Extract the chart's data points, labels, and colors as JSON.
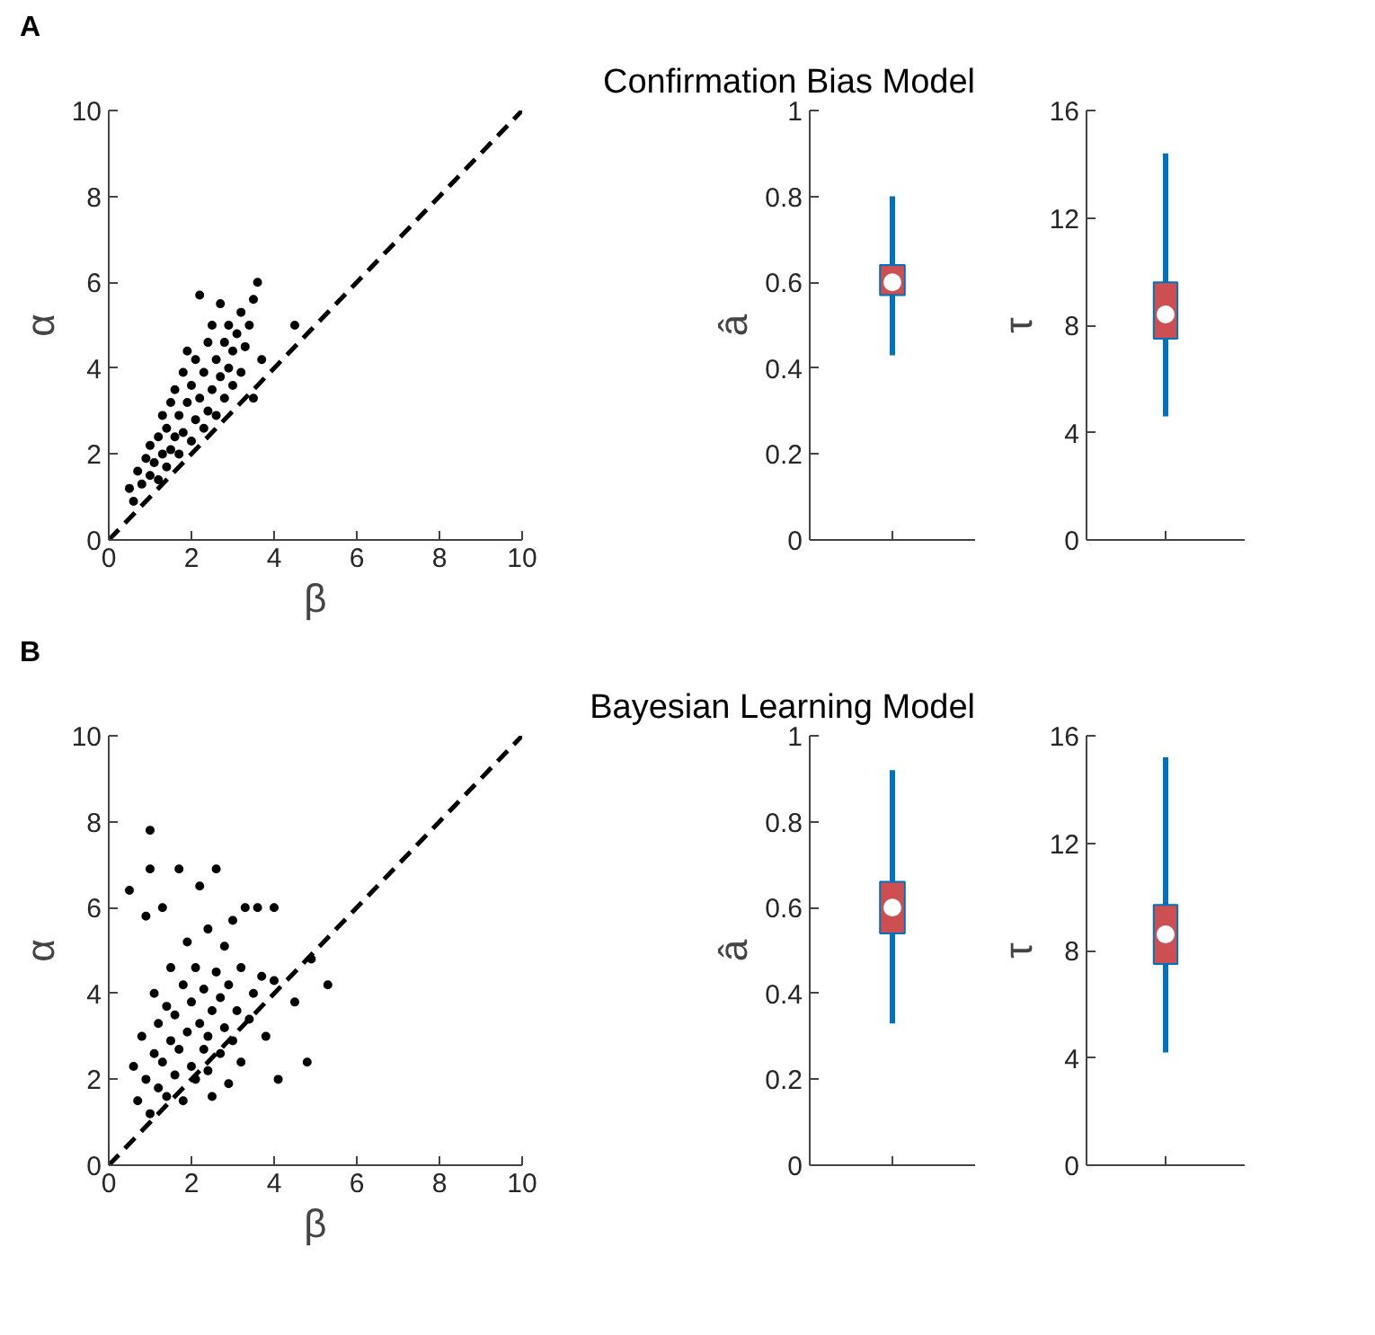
{
  "chart_data": [
    {
      "type": "scatter",
      "annotations": [
        "A"
      ],
      "xlabel": "β",
      "ylabel": "α",
      "xlim": [
        0,
        10
      ],
      "ylim": [
        0,
        10
      ],
      "xticks": [
        0,
        2,
        4,
        6,
        8,
        10
      ],
      "yticks": [
        0,
        2,
        4,
        6,
        8,
        10
      ],
      "grid": false,
      "series": [
        {
          "type": "scatter",
          "marker": "circle",
          "color": "#000000",
          "x": [
            0.5,
            0.6,
            0.7,
            0.8,
            0.9,
            1.0,
            1.0,
            1.1,
            1.2,
            1.2,
            1.3,
            1.3,
            1.4,
            1.4,
            1.5,
            1.5,
            1.6,
            1.6,
            1.7,
            1.7,
            1.8,
            1.8,
            1.9,
            1.9,
            2.0,
            2.0,
            2.1,
            2.1,
            2.2,
            2.2,
            2.3,
            2.3,
            2.4,
            2.4,
            2.5,
            2.5,
            2.6,
            2.6,
            2.7,
            2.7,
            2.8,
            2.8,
            2.9,
            2.9,
            3.0,
            3.0,
            3.1,
            3.2,
            3.2,
            3.3,
            3.4,
            3.5,
            3.6,
            3.5,
            3.7,
            4.5
          ],
          "values": [
            1.2,
            0.9,
            1.6,
            1.3,
            1.9,
            1.5,
            2.2,
            1.8,
            2.4,
            1.4,
            2.0,
            2.9,
            1.7,
            2.6,
            3.2,
            2.1,
            2.4,
            3.5,
            2.0,
            2.9,
            3.9,
            2.5,
            3.2,
            4.4,
            2.3,
            3.6,
            2.8,
            4.2,
            3.3,
            5.7,
            2.6,
            3.9,
            4.6,
            3.0,
            3.5,
            5.0,
            2.9,
            4.2,
            3.8,
            5.5,
            3.3,
            4.6,
            4.0,
            5.0,
            3.6,
            4.4,
            4.8,
            3.9,
            5.3,
            4.5,
            5.0,
            5.6,
            6.0,
            3.3,
            4.2,
            5.0
          ]
        },
        {
          "type": "line",
          "color": "#000000",
          "line_style": "dashed",
          "x": [
            0,
            10
          ],
          "values": [
            0,
            10
          ]
        }
      ]
    },
    {
      "type": "box",
      "title": "Confirmation Bias Model",
      "ylabel": "â",
      "categories": [
        null
      ],
      "ylim": [
        0,
        1
      ],
      "yticks": [
        0,
        0.2,
        0.4,
        0.6,
        0.8,
        1
      ],
      "tick_labels": "y",
      "grid": false,
      "series": [
        {
          "color": "#0072bd",
          "boxes": [
            {
              "low": 0.43,
              "q1": 0.57,
              "median": 0.6,
              "q3": 0.64,
              "high": 0.8
            }
          ]
        }
      ]
    },
    {
      "type": "box",
      "ylabel": "τ",
      "categories": [
        null
      ],
      "ylim": [
        0,
        16
      ],
      "yticks": [
        0,
        4,
        8,
        12,
        16
      ],
      "tick_labels": "y",
      "grid": false,
      "series": [
        {
          "color": "#0072bd",
          "boxes": [
            {
              "low": 4.6,
              "q1": 7.5,
              "median": 8.4,
              "q3": 9.6,
              "high": 14.4
            }
          ]
        }
      ]
    },
    {
      "type": "scatter",
      "annotations": [
        "B"
      ],
      "xlabel": "β",
      "ylabel": "α",
      "xlim": [
        0,
        10
      ],
      "ylim": [
        0,
        10
      ],
      "xticks": [
        0,
        2,
        4,
        6,
        8,
        10
      ],
      "yticks": [
        0,
        2,
        4,
        6,
        8,
        10
      ],
      "grid": false,
      "series": [
        {
          "type": "scatter",
          "marker": "circle",
          "color": "#000000",
          "x": [
            0.5,
            0.6,
            0.7,
            0.8,
            0.9,
            0.9,
            1.0,
            1.0,
            1.0,
            1.1,
            1.1,
            1.2,
            1.2,
            1.3,
            1.3,
            1.4,
            1.4,
            1.5,
            1.5,
            1.6,
            1.6,
            1.7,
            1.7,
            1.8,
            1.8,
            1.9,
            1.9,
            2.0,
            2.0,
            2.1,
            2.1,
            2.2,
            2.2,
            2.3,
            2.3,
            2.4,
            2.4,
            2.5,
            2.5,
            2.6,
            2.6,
            2.7,
            2.7,
            2.8,
            2.8,
            2.9,
            3.0,
            3.0,
            3.1,
            3.2,
            3.2,
            3.3,
            3.4,
            3.5,
            3.6,
            3.7,
            3.8,
            4.0,
            4.0,
            4.1,
            4.5,
            4.8,
            4.9,
            5.3,
            2.4,
            2.9
          ],
          "values": [
            6.4,
            2.3,
            1.5,
            3.0,
            2.0,
            5.8,
            7.8,
            6.9,
            1.2,
            2.6,
            4.0,
            1.8,
            3.3,
            2.4,
            6.0,
            3.7,
            1.6,
            2.9,
            4.6,
            2.1,
            3.5,
            6.9,
            2.7,
            4.2,
            1.5,
            3.1,
            5.2,
            2.3,
            3.8,
            4.6,
            2.0,
            3.3,
            6.5,
            2.7,
            4.1,
            5.5,
            3.0,
            3.6,
            1.6,
            4.5,
            6.9,
            2.6,
            3.9,
            5.1,
            3.2,
            4.2,
            2.9,
            5.7,
            3.6,
            2.4,
            4.6,
            6.0,
            3.4,
            4.0,
            6.0,
            4.4,
            3.0,
            6.0,
            4.3,
            2.0,
            3.8,
            2.4,
            4.8,
            4.2,
            2.2,
            1.9
          ]
        },
        {
          "type": "line",
          "color": "#000000",
          "line_style": "dashed",
          "x": [
            0,
            10
          ],
          "values": [
            0,
            10
          ]
        }
      ]
    },
    {
      "type": "box",
      "title": "Bayesian Learning Model",
      "ylabel": "â",
      "categories": [
        null
      ],
      "ylim": [
        0,
        1
      ],
      "yticks": [
        0,
        0.2,
        0.4,
        0.6,
        0.8,
        1
      ],
      "tick_labels": "y",
      "grid": false,
      "series": [
        {
          "color": "#0072bd",
          "boxes": [
            {
              "low": 0.33,
              "q1": 0.54,
              "median": 0.6,
              "q3": 0.66,
              "high": 0.92
            }
          ]
        }
      ]
    },
    {
      "type": "box",
      "ylabel": "τ",
      "categories": [
        null
      ],
      "ylim": [
        0,
        16
      ],
      "yticks": [
        0,
        4,
        8,
        12,
        16
      ],
      "tick_labels": "y",
      "grid": false,
      "series": [
        {
          "color": "#0072bd",
          "boxes": [
            {
              "low": 4.2,
              "q1": 7.5,
              "median": 8.6,
              "q3": 9.7,
              "high": 15.2
            }
          ]
        }
      ]
    }
  ]
}
